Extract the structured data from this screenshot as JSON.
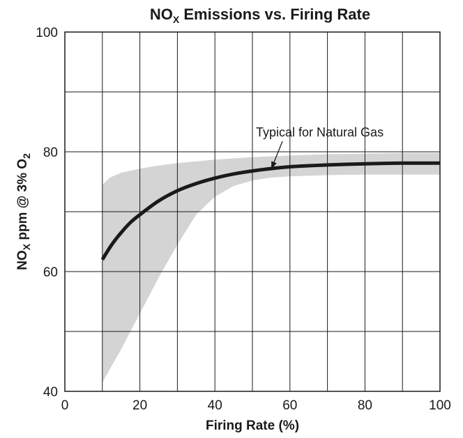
{
  "chart_data": {
    "type": "line",
    "title": {
      "main": "NO",
      "sub": "X",
      "rest": " Emissions vs. Firing Rate"
    },
    "xlabel": "Firing Rate (%)",
    "ylabel": {
      "p1": "NO",
      "s1": "X",
      "p2": " ppm @ 3% O",
      "s2": "2"
    },
    "xlim": [
      0,
      100
    ],
    "ylim": [
      40,
      100
    ],
    "x_ticks": [
      0,
      20,
      40,
      60,
      80,
      100
    ],
    "y_ticks": [
      40,
      60,
      80,
      100
    ],
    "x_grid": [
      0,
      10,
      20,
      30,
      40,
      50,
      60,
      70,
      80,
      90,
      100
    ],
    "y_grid": [
      40,
      50,
      60,
      70,
      80,
      90,
      100
    ],
    "grid": true,
    "series": [
      {
        "name": "Typical for Natural Gas",
        "color": "#1a1a1a",
        "x": [
          10,
          12.5,
          15,
          17.5,
          20,
          25,
          30,
          35,
          40,
          45,
          50,
          55,
          60,
          70,
          80,
          90,
          100
        ],
        "y": [
          62,
          64.5,
          66.5,
          68.2,
          69.5,
          71.8,
          73.5,
          74.7,
          75.6,
          76.3,
          76.8,
          77.2,
          77.5,
          77.8,
          78,
          78.1,
          78.1
        ]
      }
    ],
    "band": {
      "color": "#d4d4d4",
      "upper": {
        "x": [
          10,
          12,
          15,
          20,
          25,
          30,
          40,
          50,
          60,
          70,
          80,
          90,
          100
        ],
        "y": [
          74.5,
          75.7,
          76.5,
          77.2,
          77.7,
          78.1,
          78.7,
          79.1,
          79.4,
          79.6,
          79.7,
          79.8,
          79.8
        ]
      },
      "lower": {
        "x": [
          10,
          15,
          20,
          25,
          30,
          35,
          40,
          45,
          50,
          55,
          60,
          70,
          80,
          90,
          100
        ],
        "y": [
          41.5,
          47,
          53,
          59,
          64.5,
          69.5,
          72.5,
          74.3,
          75.2,
          75.7,
          75.9,
          76.1,
          76.2,
          76.2,
          76.2
        ]
      }
    },
    "annotations": [
      {
        "text": "Typical for Natural Gas",
        "arrow_to": [
          55,
          77.2
        ]
      }
    ]
  }
}
